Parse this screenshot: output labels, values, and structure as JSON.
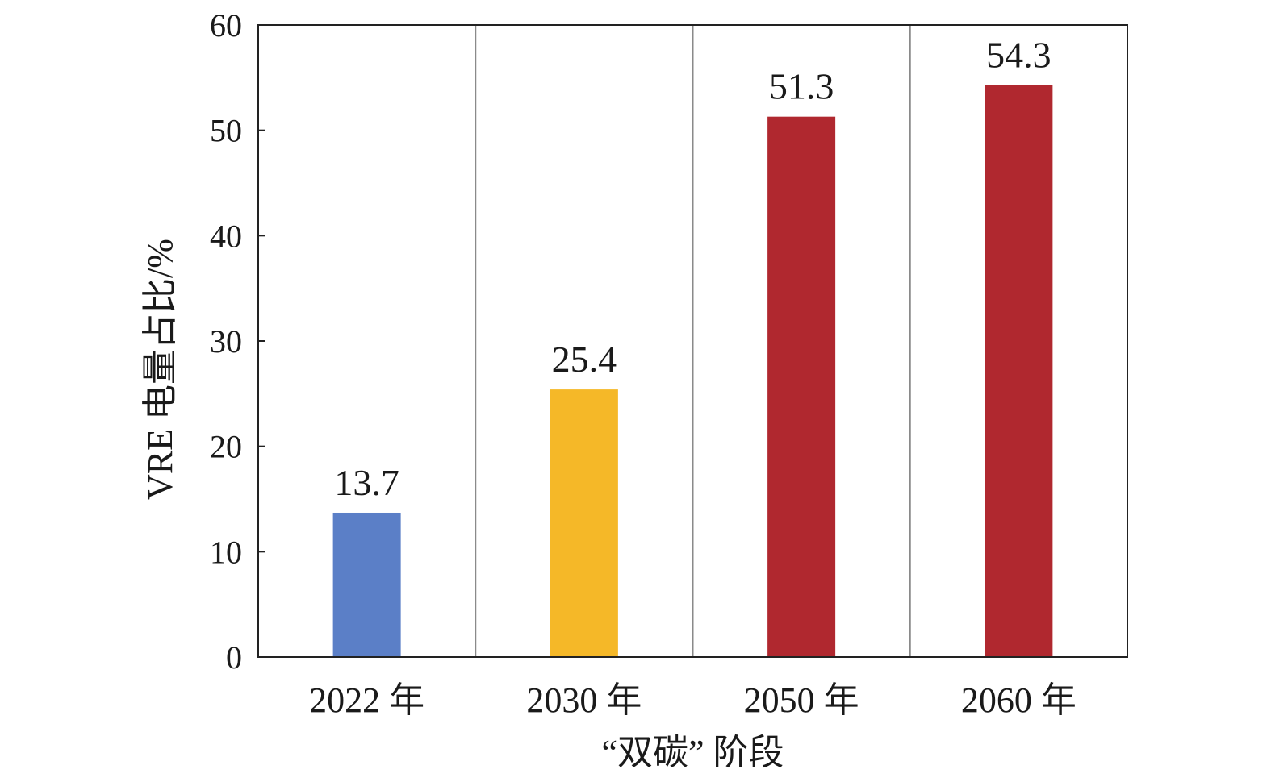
{
  "chart_data": {
    "type": "bar",
    "categories": [
      "2022 年",
      "2030 年",
      "2050 年",
      "2060 年"
    ],
    "values": [
      13.7,
      25.4,
      51.3,
      54.3
    ],
    "data_labels": [
      "13.7",
      "25.4",
      "51.3",
      "54.3"
    ],
    "colors": [
      "#5b7fc7",
      "#f5b828",
      "#b0282f",
      "#b0282f"
    ],
    "title": "",
    "xlabel": "“双碳” 阶段",
    "ylabel": "VRE 电量占比/%",
    "ylim": [
      0,
      60
    ],
    "yticks": [
      "0",
      "10",
      "20",
      "30",
      "40",
      "50",
      "60"
    ],
    "category_separators": true,
    "grid": false,
    "legend": "none"
  }
}
